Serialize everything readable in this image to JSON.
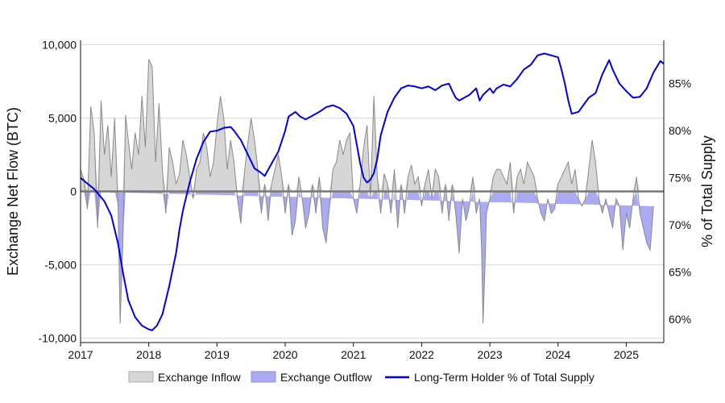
{
  "chart_data": {
    "type": "area",
    "title": "",
    "xlabel": "",
    "ylabel": "Exchange Net Flow (BTC)",
    "y2label": "% of Total Supply",
    "xlim": [
      2017.0,
      2025.55
    ],
    "ylim": [
      -10300,
      10300
    ],
    "y2lim": [
      57.5,
      89.6
    ],
    "x_ticks": [
      "2017",
      "2018",
      "2019",
      "2020",
      "2021",
      "2022",
      "2023",
      "2024",
      "2025"
    ],
    "y_ticks": [
      "10,000",
      "5,000",
      "0",
      "-5,000",
      "-10,000"
    ],
    "y2_ticks": [
      "85%",
      "80%",
      "75%",
      "70%",
      "65%",
      "60%"
    ],
    "grid": true,
    "legend_position": "bottom-center",
    "colors": {
      "inflow_fill": "#d6d6d6",
      "outflow_fill": "#aaaaf2",
      "flow_line": "#8a8a8a",
      "ltH_line": "#0000e6",
      "zero_line": "#777777"
    },
    "series": [
      {
        "name": "Exchange Inflow",
        "axis": "left",
        "note_ref": "net_flow_positive"
      },
      {
        "name": "Exchange Outflow",
        "axis": "left",
        "note_ref": "net_flow_negative"
      },
      {
        "name": "Long-Term Holder % of Total Supply",
        "axis": "right",
        "x": [
          2017.0,
          2017.08,
          2017.2,
          2017.35,
          2017.45,
          2017.55,
          2017.62,
          2017.7,
          2017.8,
          2017.9,
          2018.0,
          2018.05,
          2018.12,
          2018.2,
          2018.3,
          2018.4,
          2018.45,
          2018.5,
          2018.6,
          2018.7,
          2018.8,
          2018.9,
          2019.0,
          2019.1,
          2019.2,
          2019.25,
          2019.35,
          2019.45,
          2019.55,
          2019.65,
          2019.7,
          2019.8,
          2019.9,
          2020.0,
          2020.05,
          2020.15,
          2020.22,
          2020.3,
          2020.4,
          2020.5,
          2020.6,
          2020.7,
          2020.8,
          2020.9,
          2021.0,
          2021.05,
          2021.1,
          2021.15,
          2021.2,
          2021.25,
          2021.3,
          2021.35,
          2021.4,
          2021.5,
          2021.6,
          2021.7,
          2021.8,
          2021.9,
          2022.0,
          2022.1,
          2022.2,
          2022.3,
          2022.4,
          2022.45,
          2022.5,
          2022.55,
          2022.6,
          2022.7,
          2022.8,
          2022.85,
          2022.9,
          2023.0,
          2023.05,
          2023.1,
          2023.2,
          2023.3,
          2023.4,
          2023.5,
          2023.6,
          2023.7,
          2023.8,
          2023.9,
          2024.0,
          2024.05,
          2024.1,
          2024.15,
          2024.2,
          2024.3,
          2024.4,
          2024.45,
          2024.55,
          2024.65,
          2024.75,
          2024.8,
          2024.9,
          2025.0,
          2025.1,
          2025.2,
          2025.3,
          2025.4,
          2025.5,
          2025.55
        ],
        "values": [
          75.0,
          74.5,
          73.8,
          72.5,
          71.0,
          68.0,
          65.0,
          62.0,
          60.2,
          59.3,
          58.9,
          58.8,
          59.3,
          60.5,
          63.5,
          67.0,
          69.5,
          71.5,
          74.5,
          77.0,
          78.8,
          79.9,
          80.0,
          80.3,
          80.4,
          80.0,
          79.0,
          77.5,
          76.0,
          75.5,
          75.2,
          76.5,
          77.8,
          80.0,
          81.5,
          82.0,
          81.5,
          81.2,
          81.6,
          82.0,
          82.5,
          82.7,
          82.4,
          81.8,
          80.5,
          78.5,
          76.5,
          75.0,
          74.5,
          74.8,
          75.5,
          77.0,
          79.5,
          82.0,
          83.5,
          84.5,
          84.8,
          84.7,
          84.5,
          84.7,
          84.3,
          84.8,
          85.0,
          84.2,
          83.5,
          83.2,
          83.4,
          83.8,
          84.5,
          83.2,
          83.8,
          84.5,
          84.0,
          84.5,
          84.9,
          84.7,
          85.5,
          86.5,
          87.0,
          88.0,
          88.2,
          88.0,
          87.8,
          86.5,
          85.0,
          83.2,
          81.8,
          82.0,
          83.0,
          83.5,
          84.0,
          86.0,
          87.5,
          86.5,
          85.0,
          84.2,
          83.5,
          83.6,
          84.5,
          86.2,
          87.4,
          87.1
        ]
      }
    ],
    "net_flow_x": [
      2017.0,
      2017.05,
      2017.1,
      2017.15,
      2017.2,
      2017.25,
      2017.3,
      2017.35,
      2017.4,
      2017.45,
      2017.5,
      2017.55,
      2017.58,
      2017.62,
      2017.66,
      2017.7,
      2017.75,
      2017.8,
      2017.85,
      2017.9,
      2017.95,
      2018.0,
      2018.05,
      2018.1,
      2018.15,
      2018.2,
      2018.25,
      2018.3,
      2018.35,
      2018.4,
      2018.45,
      2018.5,
      2018.55,
      2018.6,
      2018.65,
      2018.7,
      2018.75,
      2018.8,
      2018.85,
      2018.9,
      2018.95,
      2019.0,
      2019.05,
      2019.1,
      2019.15,
      2019.2,
      2019.25,
      2019.3,
      2019.35,
      2019.4,
      2019.45,
      2019.5,
      2019.55,
      2019.6,
      2019.65,
      2019.7,
      2019.75,
      2019.8,
      2019.85,
      2019.9,
      2019.95,
      2020.0,
      2020.05,
      2020.1,
      2020.15,
      2020.2,
      2020.25,
      2020.3,
      2020.35,
      2020.4,
      2020.45,
      2020.5,
      2020.55,
      2020.6,
      2020.65,
      2020.7,
      2020.75,
      2020.8,
      2020.85,
      2020.9,
      2020.95,
      2021.0,
      2021.05,
      2021.1,
      2021.15,
      2021.2,
      2021.25,
      2021.3,
      2021.35,
      2021.4,
      2021.45,
      2021.5,
      2021.55,
      2021.6,
      2021.65,
      2021.7,
      2021.75,
      2021.8,
      2021.85,
      2021.9,
      2021.95,
      2022.0,
      2022.05,
      2022.1,
      2022.15,
      2022.2,
      2022.25,
      2022.3,
      2022.35,
      2022.4,
      2022.45,
      2022.5,
      2022.55,
      2022.6,
      2022.65,
      2022.7,
      2022.75,
      2022.8,
      2022.85,
      2022.88,
      2022.9,
      2022.93,
      2022.95,
      2023.0,
      2023.05,
      2023.1,
      2023.15,
      2023.2,
      2023.25,
      2023.3,
      2023.35,
      2023.4,
      2023.45,
      2023.5,
      2023.55,
      2023.6,
      2023.65,
      2023.7,
      2023.75,
      2023.8,
      2023.85,
      2023.9,
      2023.95,
      2024.0,
      2024.05,
      2024.1,
      2024.15,
      2024.2,
      2024.25,
      2024.3,
      2024.35,
      2024.4,
      2024.45,
      2024.5,
      2024.55,
      2024.6,
      2024.65,
      2024.7,
      2024.75,
      2024.8,
      2024.85,
      2024.9,
      2024.95,
      2025.0,
      2025.05,
      2025.1,
      2025.15,
      2025.2,
      2025.25,
      2025.3,
      2025.35,
      2025.4,
      2025.45,
      2025.5,
      2025.55
    ],
    "net_flow_values": [
      1500,
      800,
      -1200,
      5800,
      4000,
      -2500,
      6200,
      2500,
      4500,
      1000,
      5000,
      -1000,
      -9000,
      -3500,
      5200,
      3500,
      1500,
      4000,
      2500,
      6500,
      3000,
      9000,
      8500,
      2000,
      6000,
      1500,
      -1500,
      3000,
      2000,
      500,
      1200,
      3500,
      2500,
      1000,
      -500,
      1500,
      2000,
      4000,
      3000,
      1000,
      2000,
      4500,
      6500,
      5000,
      1500,
      3500,
      2000,
      -500,
      -2200,
      1200,
      3200,
      5000,
      3500,
      1500,
      -1500,
      500,
      -2000,
      500,
      1500,
      2500,
      1000,
      -1500,
      500,
      -3000,
      -2000,
      1000,
      -500,
      -2500,
      -1500,
      500,
      -1500,
      1000,
      -2500,
      -3500,
      -1000,
      1500,
      2000,
      3500,
      2500,
      3500,
      4000,
      -500,
      -1500,
      500,
      3000,
      4500,
      -500,
      6500,
      1000,
      -1500,
      1200,
      500,
      -1500,
      1500,
      -2500,
      500,
      -1500,
      1000,
      1800,
      500,
      1000,
      -1000,
      500,
      1500,
      -500,
      1500,
      1000,
      -1500,
      500,
      -2000,
      500,
      -1500,
      -4200,
      -500,
      -2000,
      -1000,
      1000,
      -1500,
      -500,
      -4000,
      -9000,
      -5000,
      -1500,
      -500,
      1000,
      1500,
      1500,
      1000,
      500,
      2000,
      -1500,
      1000,
      1500,
      500,
      2000,
      1500,
      1000,
      -500,
      -1500,
      -2000,
      -500,
      -1500,
      -1200,
      500,
      1000,
      1500,
      2000,
      500,
      1500,
      -500,
      -1000,
      -500,
      1500,
      3500,
      2000,
      -500,
      -1500,
      -500,
      -1500,
      -2500,
      -500,
      -1000,
      -4000,
      -1500,
      -2500,
      -500,
      1000,
      -1500,
      -2500,
      -3500,
      -4000,
      -1000
    ]
  },
  "legend": {
    "inflow_label": "Exchange Inflow",
    "outflow_label": "Exchange Outflow",
    "ltH_label": "Long-Term Holder % of Total Supply"
  }
}
